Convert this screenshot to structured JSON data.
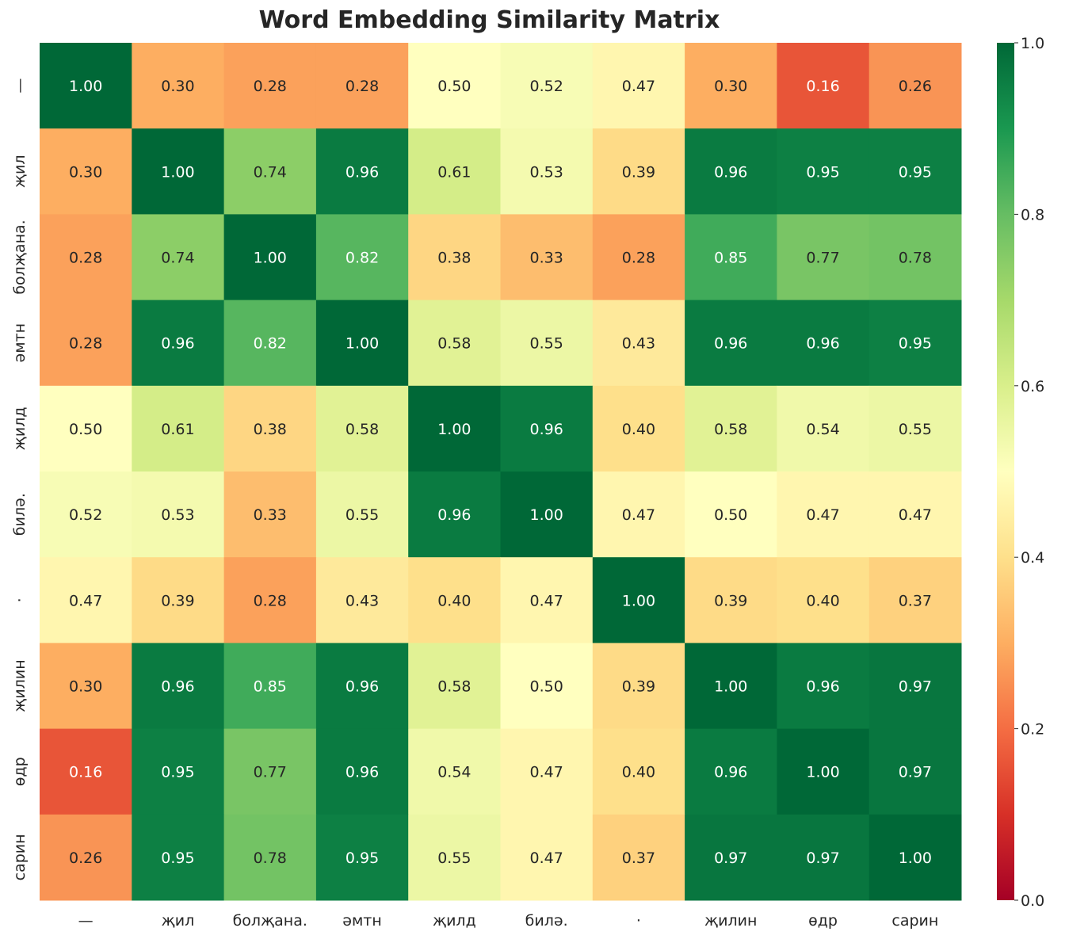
{
  "chart_data": {
    "type": "heatmap",
    "title": "Word Embedding Similarity Matrix",
    "x_labels": [
      "—",
      "җил",
      "болҗана.",
      "әмтн",
      "җилд",
      "билә.",
      "·",
      "җилин",
      "өдр",
      "сарин"
    ],
    "y_labels": [
      "—",
      "җил",
      "болҗана.",
      "әмтн",
      "җилд",
      "билә.",
      "·",
      "җилин",
      "өдр",
      "сарин"
    ],
    "values": [
      [
        1.0,
        0.3,
        0.28,
        0.28,
        0.5,
        0.52,
        0.47,
        0.3,
        0.16,
        0.26
      ],
      [
        0.3,
        1.0,
        0.74,
        0.96,
        0.61,
        0.53,
        0.39,
        0.96,
        0.95,
        0.95
      ],
      [
        0.28,
        0.74,
        1.0,
        0.82,
        0.38,
        0.33,
        0.28,
        0.85,
        0.77,
        0.78
      ],
      [
        0.28,
        0.96,
        0.82,
        1.0,
        0.58,
        0.55,
        0.43,
        0.96,
        0.96,
        0.95
      ],
      [
        0.5,
        0.61,
        0.38,
        0.58,
        1.0,
        0.96,
        0.4,
        0.58,
        0.54,
        0.55
      ],
      [
        0.52,
        0.53,
        0.33,
        0.55,
        0.96,
        1.0,
        0.47,
        0.5,
        0.47,
        0.47
      ],
      [
        0.47,
        0.39,
        0.28,
        0.43,
        0.4,
        0.47,
        1.0,
        0.39,
        0.4,
        0.37
      ],
      [
        0.3,
        0.96,
        0.85,
        0.96,
        0.58,
        0.5,
        0.39,
        1.0,
        0.96,
        0.97
      ],
      [
        0.16,
        0.95,
        0.77,
        0.96,
        0.54,
        0.47,
        0.4,
        0.96,
        1.0,
        0.97
      ],
      [
        0.26,
        0.95,
        0.78,
        0.95,
        0.55,
        0.47,
        0.37,
        0.97,
        0.97,
        1.0
      ]
    ],
    "colormap": "RdYlGn",
    "vmin": 0.0,
    "vmax": 1.0,
    "colorbar_ticks": [
      "0.0",
      "0.2",
      "0.4",
      "0.6",
      "0.8",
      "1.0"
    ],
    "annotation_format": "0.00",
    "grid": false,
    "legend": "colorbar-right"
  }
}
